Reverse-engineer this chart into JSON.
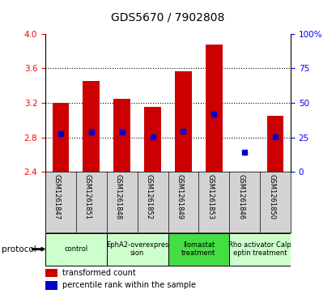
{
  "title": "GDS5670 / 7902808",
  "samples": [
    "GSM1261847",
    "GSM1261851",
    "GSM1261848",
    "GSM1261852",
    "GSM1261849",
    "GSM1261853",
    "GSM1261846",
    "GSM1261850"
  ],
  "bar_bottoms": [
    2.4,
    2.4,
    2.4,
    2.4,
    2.4,
    2.4,
    2.415,
    2.4
  ],
  "bar_tops": [
    3.2,
    3.45,
    3.25,
    3.15,
    3.57,
    3.88,
    2.415,
    3.05
  ],
  "percentile_values": [
    2.84,
    2.865,
    2.862,
    2.81,
    2.875,
    3.07,
    2.625,
    2.81
  ],
  "ylim_left": [
    2.4,
    4.0
  ],
  "ylim_right": [
    0,
    100
  ],
  "yticks_left": [
    2.4,
    2.8,
    3.2,
    3.6,
    4.0
  ],
  "yticks_right": [
    0,
    25,
    50,
    75,
    100
  ],
  "ytick_labels_right": [
    "0",
    "25",
    "50",
    "75",
    "100%"
  ],
  "protocols": [
    {
      "label": "control",
      "spans": [
        0,
        2
      ],
      "color": "#ccffcc"
    },
    {
      "label": "EphA2-overexpres\nsion",
      "spans": [
        2,
        4
      ],
      "color": "#ccffcc"
    },
    {
      "label": "Ilomastat\ntreatment",
      "spans": [
        4,
        6
      ],
      "color": "#44dd44"
    },
    {
      "label": "Rho activator Calp\neptin treatment",
      "spans": [
        6,
        8
      ],
      "color": "#ccffcc"
    }
  ],
  "bar_color": "#cc0000",
  "percentile_color": "#0000cc",
  "legend_bar_label": "transformed count",
  "legend_pct_label": "percentile rank within the sample"
}
